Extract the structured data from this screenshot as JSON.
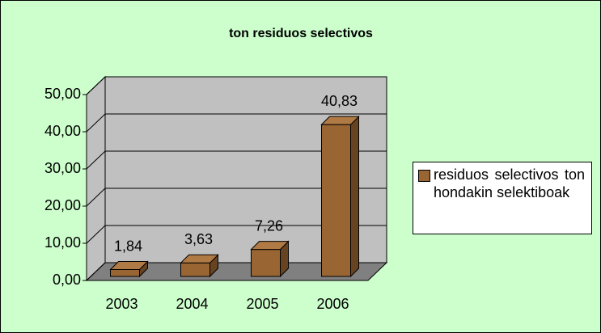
{
  "chart_data": {
    "type": "bar3d",
    "title": "ton residuos selectivos",
    "categories": [
      "2003",
      "2004",
      "2005",
      "2006"
    ],
    "series": [
      {
        "name": "residuos selectivos ton hondakin selektiboak",
        "color": "#996633",
        "values": [
          1.84,
          3.63,
          7.26,
          40.83
        ],
        "value_labels": [
          "1,84",
          "3,63",
          "7,26",
          "40,83"
        ]
      }
    ],
    "ylim": [
      0,
      50
    ],
    "yticks": [
      {
        "value": 0,
        "label": "0,00"
      },
      {
        "value": 10,
        "label": "10,00"
      },
      {
        "value": 20,
        "label": "20,00"
      },
      {
        "value": 30,
        "label": "30,00"
      },
      {
        "value": 40,
        "label": "40,00"
      },
      {
        "value": 50,
        "label": "50,00"
      }
    ],
    "grid": true,
    "legend": "right"
  }
}
